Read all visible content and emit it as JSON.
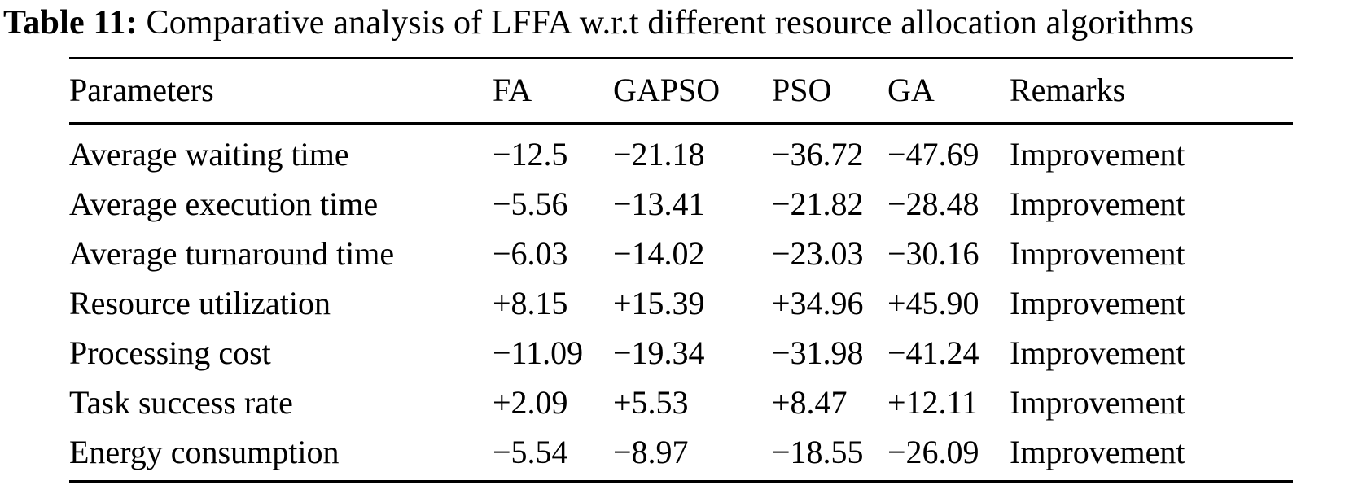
{
  "caption": {
    "label": "Table 11:",
    "text": " Comparative analysis of LFFA w.r.t different resource allocation algorithms"
  },
  "table": {
    "columns": {
      "parameter": "Parameters",
      "fa": "FA",
      "gapso": "GAPSO",
      "pso": "PSO",
      "ga": "GA",
      "remarks": "Remarks"
    },
    "rows": [
      {
        "parameter": "Average waiting time",
        "fa": "−12.5",
        "gapso": "−21.18",
        "pso": "−36.72",
        "ga": "−47.69",
        "remarks": "Improvement"
      },
      {
        "parameter": "Average execution time",
        "fa": "−5.56",
        "gapso": "−13.41",
        "pso": "−21.82",
        "ga": "−28.48",
        "remarks": "Improvement"
      },
      {
        "parameter": "Average turnaround time",
        "fa": "−6.03",
        "gapso": "−14.02",
        "pso": "−23.03",
        "ga": "−30.16",
        "remarks": "Improvement"
      },
      {
        "parameter": "Resource utilization",
        "fa": "+8.15",
        "gapso": "+15.39",
        "pso": "+34.96",
        "ga": "+45.90",
        "remarks": "Improvement"
      },
      {
        "parameter": "Processing cost",
        "fa": "−11.09",
        "gapso": "−19.34",
        "pso": "−31.98",
        "ga": "−41.24",
        "remarks": "Improvement"
      },
      {
        "parameter": "Task success rate",
        "fa": "+2.09",
        "gapso": "+5.53",
        "pso": "+8.47",
        "ga": "+12.11",
        "remarks": "Improvement"
      },
      {
        "parameter": "Energy consumption",
        "fa": "−5.54",
        "gapso": "−8.97",
        "pso": "−18.55",
        "ga": "−26.09",
        "remarks": "Improvement"
      }
    ]
  },
  "chart_data": {
    "type": "table",
    "title": "Table 11: Comparative analysis of LFFA w.r.t different resource allocation algorithms",
    "categories": [
      "Average waiting time",
      "Average execution time",
      "Average turnaround time",
      "Resource utilization",
      "Processing cost",
      "Task success rate",
      "Energy consumption"
    ],
    "series": [
      {
        "name": "FA",
        "values": [
          -12.5,
          -5.56,
          -6.03,
          8.15,
          -11.09,
          2.09,
          -5.54
        ]
      },
      {
        "name": "GAPSO",
        "values": [
          -21.18,
          -13.41,
          -14.02,
          15.39,
          -19.34,
          5.53,
          -8.97
        ]
      },
      {
        "name": "PSO",
        "values": [
          -36.72,
          -21.82,
          -23.03,
          34.96,
          -31.98,
          8.47,
          -18.55
        ]
      },
      {
        "name": "GA",
        "values": [
          -47.69,
          -28.48,
          -30.16,
          45.9,
          -41.24,
          12.11,
          -26.09
        ]
      }
    ],
    "remarks": [
      "Improvement",
      "Improvement",
      "Improvement",
      "Improvement",
      "Improvement",
      "Improvement",
      "Improvement"
    ],
    "colors": {
      "text": "#000000",
      "background": "#ffffff",
      "rule": "#000000"
    }
  }
}
